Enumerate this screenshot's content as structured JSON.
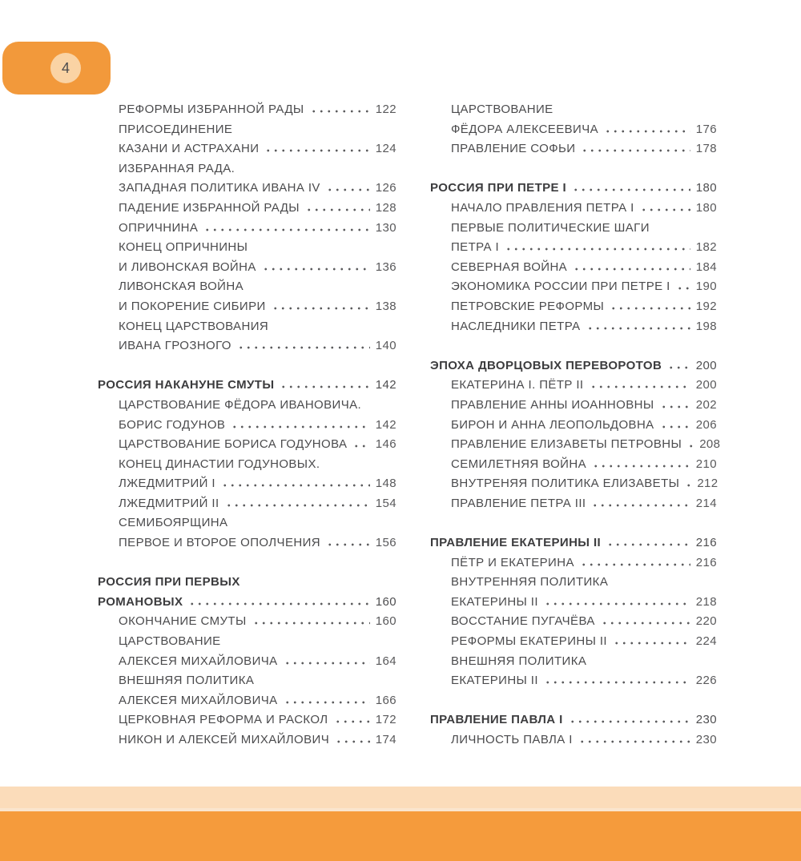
{
  "page": {
    "number": "4",
    "colors": {
      "badge_orange": "#F2993B",
      "badge_circle": "#FAD3A4",
      "footer_light": "#FBDCBA",
      "footer_strip": "#FAE5CE",
      "footer_orange": "#F59B3C",
      "text": "#4B4B4D",
      "text_bold": "#3C3C3E"
    }
  },
  "toc": {
    "columns": [
      {
        "sections": [
          {
            "entries": [
              {
                "text": "РЕФОРМЫ ИЗБРАННОЙ РАДЫ",
                "page": "122",
                "bold": false,
                "indent": true
              },
              {
                "text": "ПРИСОЕДИНЕНИЕ",
                "bold": false,
                "indent": true
              },
              {
                "text": "КАЗАНИ И АСТРАХАНИ",
                "page": "124",
                "bold": false,
                "indent": true
              },
              {
                "text": "ИЗБРАННАЯ РАДА.",
                "bold": false,
                "indent": true
              },
              {
                "text": "ЗАПАДНАЯ ПОЛИТИКА ИВАНА IV",
                "page": "126",
                "bold": false,
                "indent": true
              },
              {
                "text": "ПАДЕНИЕ ИЗБРАННОЙ РАДЫ",
                "page": "128",
                "bold": false,
                "indent": true
              },
              {
                "text": "ОПРИЧНИНА",
                "page": "130",
                "bold": false,
                "indent": true
              },
              {
                "text": "КОНЕЦ ОПРИЧНИНЫ",
                "bold": false,
                "indent": true
              },
              {
                "text": "И ЛИВОНСКАЯ ВОЙНА",
                "page": "136",
                "bold": false,
                "indent": true
              },
              {
                "text": "ЛИВОНСКАЯ ВОЙНА",
                "bold": false,
                "indent": true
              },
              {
                "text": "И ПОКОРЕНИЕ СИБИРИ",
                "page": "138",
                "bold": false,
                "indent": true
              },
              {
                "text": "КОНЕЦ ЦАРСТВОВАНИЯ",
                "bold": false,
                "indent": true
              },
              {
                "text": "ИВАНА ГРОЗНОГО",
                "page": "140",
                "bold": false,
                "indent": true
              }
            ]
          },
          {
            "entries": [
              {
                "text": "РОССИЯ НАКАНУНЕ СМУТЫ",
                "page": "142",
                "bold": true,
                "indent": false
              },
              {
                "text": "ЦАРСТВОВАНИЕ ФЁДОРА ИВАНОВИЧА.",
                "bold": false,
                "indent": true
              },
              {
                "text": "БОРИС ГОДУНОВ",
                "page": "142",
                "bold": false,
                "indent": true
              },
              {
                "text": "ЦАРСТВОВАНИЕ БОРИСА ГОДУНОВА",
                "page": "146",
                "bold": false,
                "indent": true
              },
              {
                "text": "КОНЕЦ ДИНАСТИИ ГОДУНОВЫХ.",
                "bold": false,
                "indent": true
              },
              {
                "text": "ЛЖЕДМИТРИЙ I",
                "page": "148",
                "bold": false,
                "indent": true
              },
              {
                "text": "ЛЖЕДМИТРИЙ II",
                "page": "154",
                "bold": false,
                "indent": true
              },
              {
                "text": "СЕМИБОЯРЩИНА",
                "bold": false,
                "indent": true
              },
              {
                "text": "ПЕРВОЕ И ВТОРОЕ ОПОЛЧЕНИЯ",
                "page": "156",
                "bold": false,
                "indent": true
              }
            ]
          },
          {
            "entries": [
              {
                "text": "РОССИЯ ПРИ ПЕРВЫХ",
                "bold": true,
                "indent": false
              },
              {
                "text": "РОМАНОВЫХ",
                "page": "160",
                "bold": true,
                "indent": false
              },
              {
                "text": "ОКОНЧАНИЕ СМУТЫ",
                "page": "160",
                "bold": false,
                "indent": true
              },
              {
                "text": "ЦАРСТВОВАНИЕ",
                "bold": false,
                "indent": true
              },
              {
                "text": "АЛЕКСЕЯ МИХАЙЛОВИЧА",
                "page": "164",
                "bold": false,
                "indent": true
              },
              {
                "text": "ВНЕШНЯЯ ПОЛИТИКА",
                "bold": false,
                "indent": true
              },
              {
                "text": "АЛЕКСЕЯ МИХАЙЛОВИЧА",
                "page": "166",
                "bold": false,
                "indent": true
              },
              {
                "text": "ЦЕРКОВНАЯ РЕФОРМА И РАСКОЛ",
                "page": "172",
                "bold": false,
                "indent": true
              },
              {
                "text": "НИКОН И АЛЕКСЕЙ МИХАЙЛОВИЧ",
                "page": "174",
                "bold": false,
                "indent": true
              }
            ]
          }
        ]
      },
      {
        "sections": [
          {
            "entries": [
              {
                "text": "ЦАРСТВОВАНИЕ",
                "bold": false,
                "indent": true
              },
              {
                "text": "ФЁДОРА АЛЕКСЕЕВИЧА",
                "page": "176",
                "bold": false,
                "indent": true
              },
              {
                "text": "ПРАВЛЕНИЕ СОФЬИ",
                "page": "178",
                "bold": false,
                "indent": true
              }
            ]
          },
          {
            "entries": [
              {
                "text": "РОССИЯ ПРИ ПЕТРЕ I",
                "page": "180",
                "bold": true,
                "indent": false
              },
              {
                "text": "НАЧАЛО ПРАВЛЕНИЯ ПЕТРА I",
                "page": "180",
                "bold": false,
                "indent": true
              },
              {
                "text": "ПЕРВЫЕ ПОЛИТИЧЕСКИЕ ШАГИ",
                "bold": false,
                "indent": true
              },
              {
                "text": "ПЕТРА I",
                "page": "182",
                "bold": false,
                "indent": true
              },
              {
                "text": "СЕВЕРНАЯ ВОЙНА",
                "page": "184",
                "bold": false,
                "indent": true
              },
              {
                "text": "ЭКОНОМИКА РОССИИ ПРИ ПЕТРЕ I",
                "page": "190",
                "bold": false,
                "indent": true
              },
              {
                "text": "ПЕТРОВСКИЕ РЕФОРМЫ",
                "page": "192",
                "bold": false,
                "indent": true
              },
              {
                "text": "НАСЛЕДНИКИ ПЕТРА",
                "page": "198",
                "bold": false,
                "indent": true
              }
            ]
          },
          {
            "entries": [
              {
                "text": "ЭПОХА ДВОРЦОВЫХ ПЕРЕВОРОТОВ",
                "page": "200",
                "bold": true,
                "indent": false
              },
              {
                "text": "ЕКАТЕРИНА I. ПЁТР II",
                "page": "200",
                "bold": false,
                "indent": true
              },
              {
                "text": "ПРАВЛЕНИЕ АННЫ ИОАННОВНЫ",
                "page": "202",
                "bold": false,
                "indent": true
              },
              {
                "text": "БИРОН И АННА ЛЕОПОЛЬДОВНА",
                "page": "206",
                "bold": false,
                "indent": true
              },
              {
                "text": "ПРАВЛЕНИЕ ЕЛИЗАВЕТЫ ПЕТРОВНЫ",
                "page": "208",
                "bold": false,
                "indent": true
              },
              {
                "text": "СЕМИЛЕТНЯЯ ВОЙНА",
                "page": "210",
                "bold": false,
                "indent": true
              },
              {
                "text": "ВНУТРЕНЯЯ ПОЛИТИКА ЕЛИЗАВЕТЫ",
                "page": "212",
                "bold": false,
                "indent": true
              },
              {
                "text": "ПРАВЛЕНИЕ ПЕТРА III",
                "page": "214",
                "bold": false,
                "indent": true
              }
            ]
          },
          {
            "entries": [
              {
                "text": "ПРАВЛЕНИЕ ЕКАТЕРИНЫ II",
                "page": "216",
                "bold": true,
                "indent": false
              },
              {
                "text": "ПЁТР И ЕКАТЕРИНА",
                "page": "216",
                "bold": false,
                "indent": true
              },
              {
                "text": "ВНУТРЕННЯЯ ПОЛИТИКА",
                "bold": false,
                "indent": true
              },
              {
                "text": "ЕКАТЕРИНЫ II",
                "page": "218",
                "bold": false,
                "indent": true
              },
              {
                "text": "ВОССТАНИЕ ПУГАЧЁВА",
                "page": "220",
                "bold": false,
                "indent": true
              },
              {
                "text": "РЕФОРМЫ ЕКАТЕРИНЫ II",
                "page": "224",
                "bold": false,
                "indent": true
              },
              {
                "text": "ВНЕШНЯЯ ПОЛИТИКА",
                "bold": false,
                "indent": true
              },
              {
                "text": "ЕКАТЕРИНЫ II",
                "page": "226",
                "bold": false,
                "indent": true
              }
            ]
          },
          {
            "entries": [
              {
                "text": "ПРАВЛЕНИЕ ПАВЛА I",
                "page": "230",
                "bold": true,
                "indent": false
              },
              {
                "text": "ЛИЧНОСТЬ ПАВЛА I",
                "page": "230",
                "bold": false,
                "indent": true
              }
            ]
          }
        ]
      }
    ]
  }
}
